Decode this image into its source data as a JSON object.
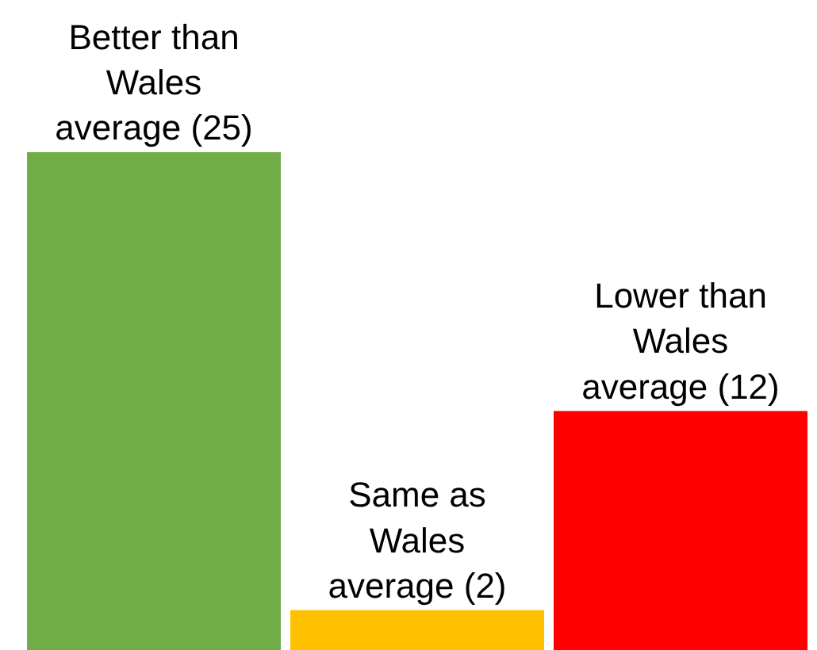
{
  "chart_data": {
    "type": "bar",
    "categories": [
      null,
      null,
      null
    ],
    "values": [
      25,
      2,
      12
    ],
    "colors": [
      "#70ad47",
      "#ffc000",
      "#ff0000"
    ],
    "value_labels": [
      "Better than Wales average (25)",
      "Same as Wales average (2)",
      "Lower than Wales average (12)"
    ],
    "tick_labels": false
  }
}
